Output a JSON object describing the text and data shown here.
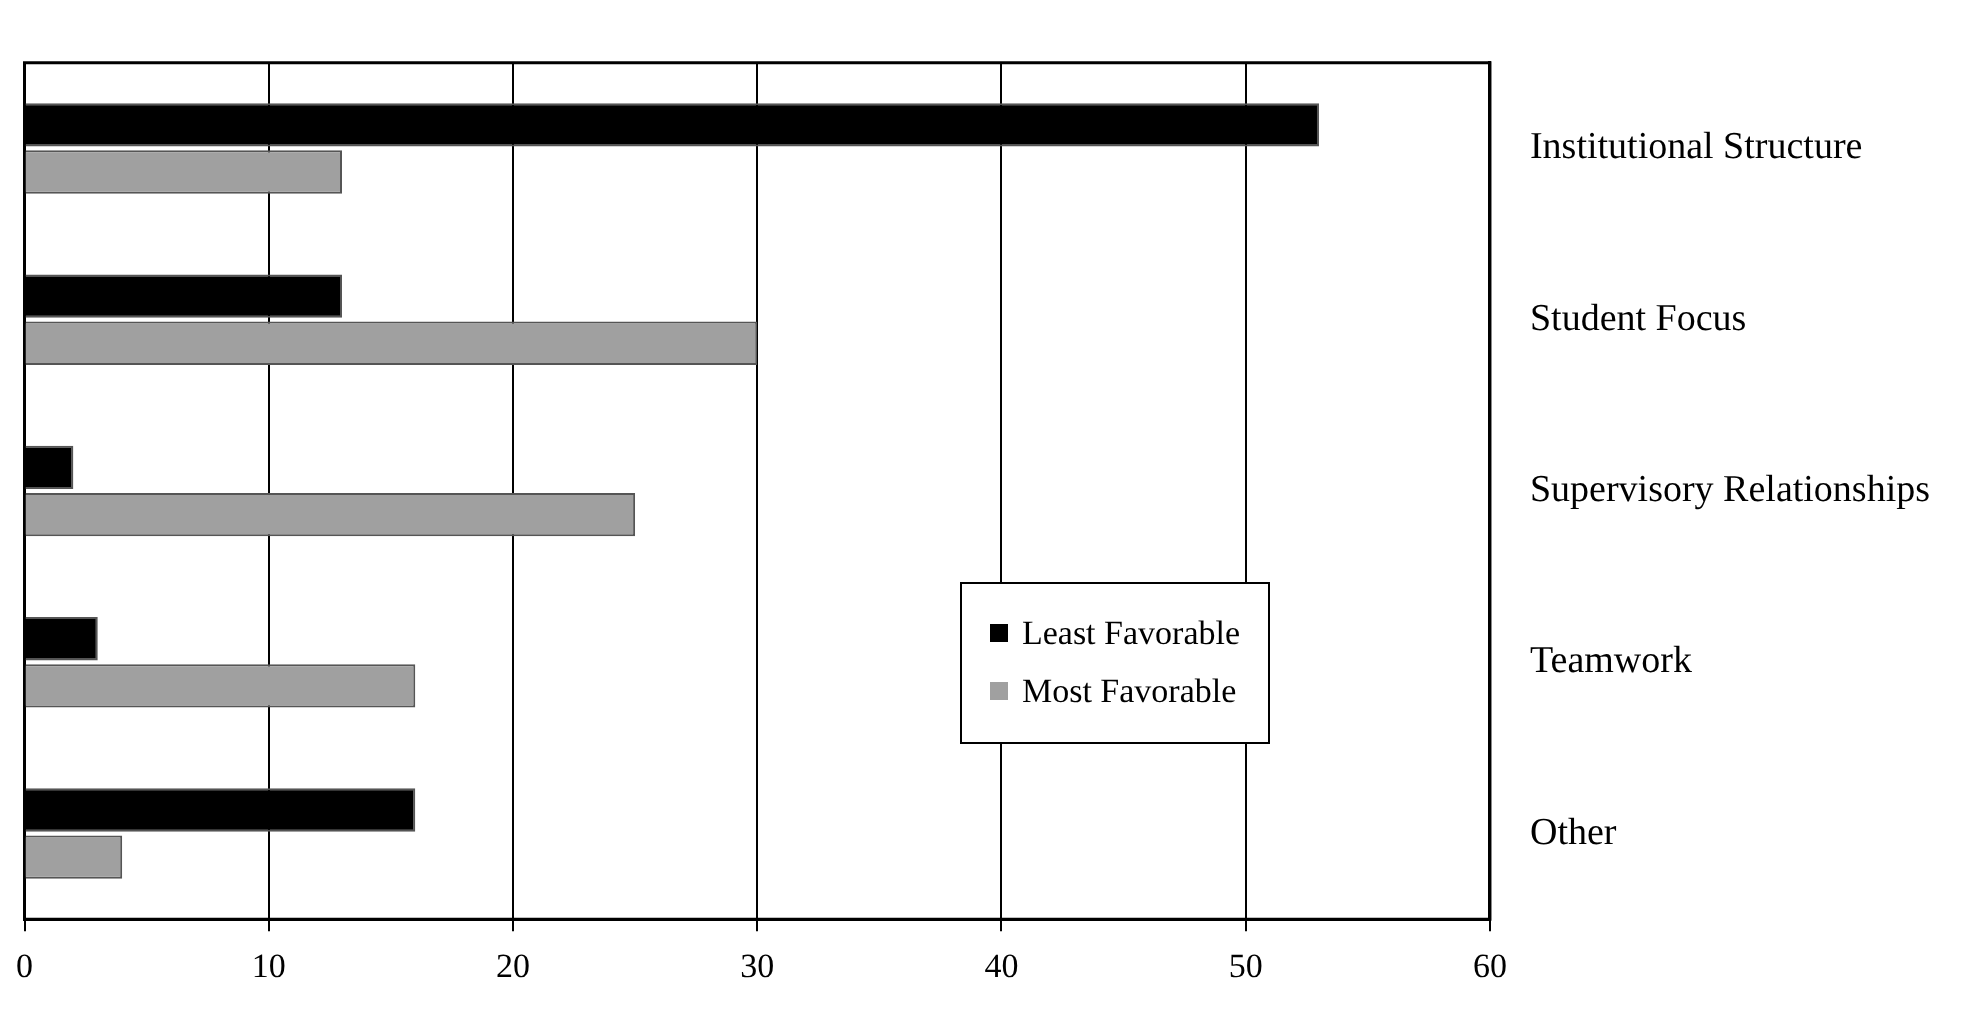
{
  "chart_data": {
    "type": "bar",
    "orientation": "horizontal",
    "categories": [
      "Institutional Structure",
      "Student Focus",
      "Supervisory Relationships",
      "Teamwork",
      "Other"
    ],
    "series": [
      {
        "name": "Least Favorable",
        "color": "#000000",
        "values": [
          53,
          13,
          2,
          3,
          16
        ]
      },
      {
        "name": "Most Favorable",
        "color": "#a0a0a0",
        "values": [
          13,
          30,
          25,
          16,
          4
        ]
      }
    ],
    "xlim": [
      0,
      60
    ],
    "xticks": [
      0,
      10,
      20,
      30,
      40,
      50,
      60
    ],
    "grid": "x",
    "legend": "right"
  }
}
